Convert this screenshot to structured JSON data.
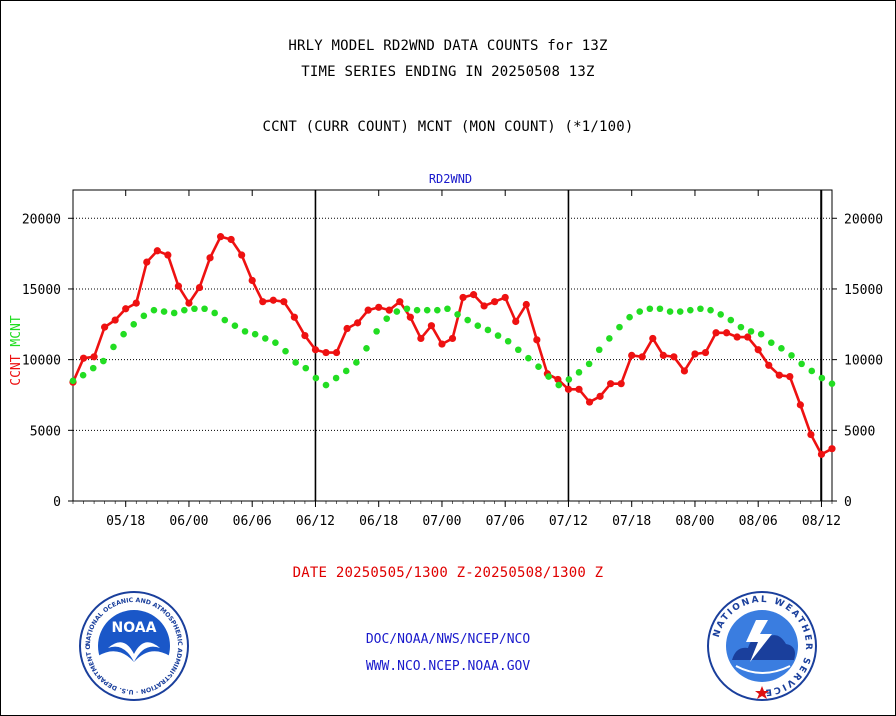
{
  "header": {
    "line1": "HRLY MODEL RD2WND DATA COUNTS for 13Z",
    "line2": "TIME SERIES ENDING IN 20250508 13Z",
    "line3": "CCNT (CURR COUNT) MCNT (MON COUNT) (*1/100)"
  },
  "chart_data": {
    "type": "line",
    "title": "RD2WND",
    "ylabel_left_red": "CCNT",
    "ylabel_left_green": "MCNT",
    "xlabel": "DATE 20250505/1300 Z-20250508/1300 Z",
    "ylim": [
      0,
      22000
    ],
    "yticks": [
      "0",
      "5000",
      "10000",
      "15000",
      "20000"
    ],
    "xticks": [
      "05/18",
      "06/00",
      "06/06",
      "06/12",
      "06/18",
      "07/00",
      "07/06",
      "07/12",
      "07/18",
      "08/00",
      "08/06",
      "08/12"
    ],
    "grid": true,
    "series": [
      {
        "name": "CCNT",
        "color": "#ee1111",
        "values": [
          8400,
          10100,
          10200,
          12300,
          12800,
          13600,
          14000,
          16900,
          17700,
          17400,
          15200,
          14000,
          15100,
          17200,
          18700,
          18500,
          17400,
          15600,
          14100,
          14200,
          14100,
          13000,
          11700,
          10700,
          10500,
          10500,
          12200,
          12600,
          13500,
          13700,
          13500,
          14100,
          13000,
          11500,
          12400,
          11100,
          11500,
          14400,
          14600,
          13800,
          14100,
          14400,
          12700,
          13900,
          11400,
          9000,
          8600,
          7900,
          7900,
          7000,
          7400,
          8300,
          8300,
          10300,
          10200,
          11500,
          10300,
          10200,
          9200,
          10400,
          10500,
          11900,
          11900,
          11600,
          11600,
          10700,
          9600,
          8900,
          8800,
          6800,
          4700,
          3300,
          3700
        ]
      },
      {
        "name": "MCNT",
        "color": "#22dd22",
        "values": [
          8500,
          8900,
          9400,
          9900,
          10900,
          11800,
          12500,
          13100,
          13500,
          13400,
          13300,
          13500,
          13600,
          13600,
          13300,
          12800,
          12400,
          12000,
          11800,
          11500,
          11200,
          10600,
          9800,
          9400,
          8700,
          8200,
          8700,
          9200,
          9800,
          10800,
          12000,
          12900,
          13400,
          13600,
          13500,
          13500,
          13500,
          13600,
          13200,
          12800,
          12400,
          12100,
          11700,
          11300,
          10700,
          10100,
          9500,
          8800,
          8200,
          8600,
          9100,
          9700,
          10700,
          11500,
          12300,
          13000,
          13400,
          13600,
          13600,
          13400,
          13400,
          13500,
          13600,
          13500,
          13200,
          12800,
          12300,
          12000,
          11800,
          11200,
          10800,
          10300,
          9700,
          9200,
          8700,
          8300
        ]
      }
    ]
  },
  "footer": {
    "line1": "DOC/NOAA/NWS/NCEP/NCO",
    "line2": "WWW.NCO.NCEP.NOAA.GOV"
  },
  "logos": {
    "left": {
      "name": "noaa-logo",
      "text": "NOAA",
      "ring_text": "NATIONAL OCEANIC AND ATMOSPHERIC ADMINISTRATION · U.S. DEPARTMENT OF COMMERCE"
    },
    "right": {
      "name": "nws-logo",
      "ring_text": "NATIONAL WEATHER SERVICE"
    }
  },
  "colors": {
    "red": "#ee1111",
    "green": "#22dd22",
    "blue": "#1a1acc"
  }
}
